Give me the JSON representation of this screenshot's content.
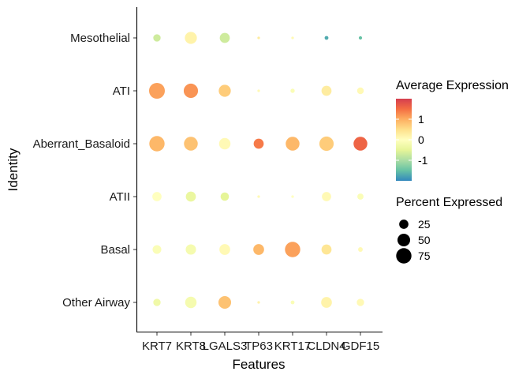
{
  "chart_data": {
    "type": "dotplot",
    "xlabel": "Features",
    "ylabel": "Identity",
    "features": [
      "KRT7",
      "KRT8",
      "LGALS3",
      "TP63",
      "KRT17",
      "CLDN4",
      "GDF15"
    ],
    "identities": [
      "Mesothelial",
      "ATI",
      "Aberrant_Basaloid",
      "ATII",
      "Basal",
      "Other Airway"
    ],
    "grid": false,
    "points": [
      {
        "identity": "Mesothelial",
        "feature": "KRT7",
        "avg_exp": -0.7,
        "pct_exp": 15
      },
      {
        "identity": "Mesothelial",
        "feature": "KRT8",
        "avg_exp": 0.2,
        "pct_exp": 45
      },
      {
        "identity": "Mesothelial",
        "feature": "LGALS3",
        "avg_exp": -0.7,
        "pct_exp": 30
      },
      {
        "identity": "Mesothelial",
        "feature": "TP63",
        "avg_exp": 0.3,
        "pct_exp": 1
      },
      {
        "identity": "Mesothelial",
        "feature": "KRT17",
        "avg_exp": 0.1,
        "pct_exp": 1
      },
      {
        "identity": "Mesothelial",
        "feature": "CLDN4",
        "avg_exp": -1.7,
        "pct_exp": 3
      },
      {
        "identity": "Mesothelial",
        "feature": "GDF15",
        "avg_exp": -1.5,
        "pct_exp": 2
      },
      {
        "identity": "ATI",
        "feature": "KRT7",
        "avg_exp": 1.1,
        "pct_exp": 80
      },
      {
        "identity": "ATI",
        "feature": "KRT8",
        "avg_exp": 1.2,
        "pct_exp": 65
      },
      {
        "identity": "ATI",
        "feature": "LGALS3",
        "avg_exp": 0.7,
        "pct_exp": 45
      },
      {
        "identity": "ATI",
        "feature": "TP63",
        "avg_exp": 0.1,
        "pct_exp": 1
      },
      {
        "identity": "ATI",
        "feature": "KRT17",
        "avg_exp": -0.1,
        "pct_exp": 4
      },
      {
        "identity": "ATI",
        "feature": "CLDN4",
        "avg_exp": 0.3,
        "pct_exp": 30
      },
      {
        "identity": "ATI",
        "feature": "GDF15",
        "avg_exp": 0.1,
        "pct_exp": 12
      },
      {
        "identity": "Aberrant_Basaloid",
        "feature": "KRT7",
        "avg_exp": 0.9,
        "pct_exp": 75
      },
      {
        "identity": "Aberrant_Basaloid",
        "feature": "KRT8",
        "avg_exp": 0.8,
        "pct_exp": 60
      },
      {
        "identity": "Aberrant_Basaloid",
        "feature": "LGALS3",
        "avg_exp": 0.1,
        "pct_exp": 40
      },
      {
        "identity": "Aberrant_Basaloid",
        "feature": "TP63",
        "avg_exp": 1.4,
        "pct_exp": 30
      },
      {
        "identity": "Aberrant_Basaloid",
        "feature": "KRT17",
        "avg_exp": 0.9,
        "pct_exp": 60
      },
      {
        "identity": "Aberrant_Basaloid",
        "feature": "CLDN4",
        "avg_exp": 0.7,
        "pct_exp": 65
      },
      {
        "identity": "Aberrant_Basaloid",
        "feature": "GDF15",
        "avg_exp": 1.6,
        "pct_exp": 60
      },
      {
        "identity": "ATII",
        "feature": "KRT7",
        "avg_exp": 0.0,
        "pct_exp": 25
      },
      {
        "identity": "ATII",
        "feature": "KRT8",
        "avg_exp": -0.4,
        "pct_exp": 30
      },
      {
        "identity": "ATII",
        "feature": "LGALS3",
        "avg_exp": -0.5,
        "pct_exp": 20
      },
      {
        "identity": "ATII",
        "feature": "TP63",
        "avg_exp": 0.1,
        "pct_exp": 1
      },
      {
        "identity": "ATII",
        "feature": "KRT17",
        "avg_exp": 0.0,
        "pct_exp": 1
      },
      {
        "identity": "ATII",
        "feature": "CLDN4",
        "avg_exp": 0.1,
        "pct_exp": 25
      },
      {
        "identity": "ATII",
        "feature": "GDF15",
        "avg_exp": -0.1,
        "pct_exp": 10
      },
      {
        "identity": "Basal",
        "feature": "KRT7",
        "avg_exp": -0.1,
        "pct_exp": 22
      },
      {
        "identity": "Basal",
        "feature": "KRT8",
        "avg_exp": -0.2,
        "pct_exp": 32
      },
      {
        "identity": "Basal",
        "feature": "LGALS3",
        "avg_exp": 0.1,
        "pct_exp": 35
      },
      {
        "identity": "Basal",
        "feature": "TP63",
        "avg_exp": 0.9,
        "pct_exp": 35
      },
      {
        "identity": "Basal",
        "feature": "KRT17",
        "avg_exp": 1.1,
        "pct_exp": 75
      },
      {
        "identity": "Basal",
        "feature": "CLDN4",
        "avg_exp": 0.4,
        "pct_exp": 30
      },
      {
        "identity": "Basal",
        "feature": "GDF15",
        "avg_exp": 0.1,
        "pct_exp": 5
      },
      {
        "identity": "Other Airway",
        "feature": "KRT7",
        "avg_exp": -0.3,
        "pct_exp": 15
      },
      {
        "identity": "Other Airway",
        "feature": "KRT8",
        "avg_exp": -0.2,
        "pct_exp": 40
      },
      {
        "identity": "Other Airway",
        "feature": "LGALS3",
        "avg_exp": 0.8,
        "pct_exp": 50
      },
      {
        "identity": "Other Airway",
        "feature": "TP63",
        "avg_exp": 0.2,
        "pct_exp": 1
      },
      {
        "identity": "Other Airway",
        "feature": "KRT17",
        "avg_exp": -0.1,
        "pct_exp": 3
      },
      {
        "identity": "Other Airway",
        "feature": "CLDN4",
        "avg_exp": 0.2,
        "pct_exp": 35
      },
      {
        "identity": "Other Airway",
        "feature": "GDF15",
        "avg_exp": 0.1,
        "pct_exp": 15
      }
    ],
    "color_legend": {
      "title": "Average Expression",
      "range": [
        -2,
        2
      ],
      "ticks": [
        {
          "value": 1,
          "label": "1"
        },
        {
          "value": 0,
          "label": "0"
        },
        {
          "value": -1,
          "label": "-1"
        }
      ],
      "palette": [
        "#3288bd",
        "#66c2a5",
        "#abdda4",
        "#e6f598",
        "#ffffbf",
        "#fee08b",
        "#fdae61",
        "#f46d43",
        "#d53e4f"
      ]
    },
    "size_legend": {
      "title": "Percent Expressed",
      "entries": [
        {
          "value": 25,
          "label": "25"
        },
        {
          "value": 50,
          "label": "50"
        },
        {
          "value": 75,
          "label": "75"
        }
      ]
    }
  }
}
